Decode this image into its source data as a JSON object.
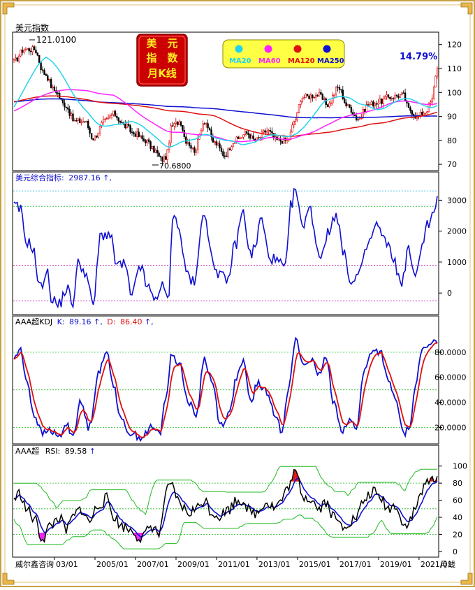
{
  "title": "美元指数",
  "high_label": "121.0100",
  "low_label": "70.6800",
  "badge": {
    "line1": "美　元",
    "line2": "指　数",
    "line3": "月K线"
  },
  "pct_label": "14.79%",
  "ma_legend": [
    {
      "name": "MA20",
      "color": "#22d3ee"
    },
    {
      "name": "MA60",
      "color": "#ff22ff"
    },
    {
      "name": "MA120",
      "color": "#e01010"
    },
    {
      "name": "MA250",
      "color": "#1010d0"
    }
  ],
  "panel2": {
    "label": "美元综合指标:",
    "value": "2987.16",
    "suffix": "↑,"
  },
  "panel3": {
    "label": "AAA超KDJ",
    "k_label": "K:",
    "k_value": "89.16",
    "k_arrow": "↑,",
    "d_label": "D:",
    "d_value": "86.40",
    "d_arrow": "↑,"
  },
  "panel4": {
    "label": "AAA超",
    "rsi_label": "RSI:",
    "rsi_value": "89.58",
    "rsi_arrow": "↑"
  },
  "footer": {
    "brand": "威尔鑫咨询",
    "period": "月线"
  },
  "colors": {
    "up": "#e00000",
    "down": "#000000",
    "blue": "#1010d0",
    "red": "#e01010",
    "cyan": "#22d3ee",
    "magenta": "#ff22ff",
    "green": "#22bb22",
    "frame": "#c8a040"
  },
  "chart_data": [
    {
      "type": "candlestick",
      "title": "美元指数",
      "ylim": [
        68,
        124
      ],
      "yticks": [
        70,
        80,
        90,
        100,
        110,
        120
      ],
      "x_ticks": [
        "03/01",
        "2005/01",
        "2007/01",
        "2009/01",
        "2011/01",
        "2013/01",
        "2015/01",
        "2017/01",
        "2019/01",
        "2021/01"
      ],
      "x_start": 2001.0,
      "x_end": 2021.9,
      "close_anchors": [
        [
          2001.0,
          113
        ],
        [
          2001.5,
          118
        ],
        [
          2002.0,
          118
        ],
        [
          2002.5,
          108
        ],
        [
          2003.0,
          101
        ],
        [
          2003.5,
          95
        ],
        [
          2004.0,
          88
        ],
        [
          2004.5,
          88
        ],
        [
          2004.9,
          81
        ],
        [
          2005.5,
          88
        ],
        [
          2005.9,
          91
        ],
        [
          2006.5,
          86
        ],
        [
          2006.9,
          83
        ],
        [
          2007.5,
          80
        ],
        [
          2007.9,
          76
        ],
        [
          2008.3,
          72
        ],
        [
          2008.5,
          73
        ],
        [
          2008.8,
          86
        ],
        [
          2009.2,
          88
        ],
        [
          2009.5,
          80
        ],
        [
          2009.9,
          76
        ],
        [
          2010.4,
          88
        ],
        [
          2010.9,
          79
        ],
        [
          2011.4,
          74
        ],
        [
          2011.9,
          80
        ],
        [
          2012.5,
          83
        ],
        [
          2012.9,
          80
        ],
        [
          2013.5,
          84
        ],
        [
          2014.0,
          80
        ],
        [
          2014.5,
          80
        ],
        [
          2014.9,
          89
        ],
        [
          2015.2,
          98
        ],
        [
          2016.0,
          99
        ],
        [
          2016.5,
          95
        ],
        [
          2017.0,
          102
        ],
        [
          2017.5,
          94
        ],
        [
          2018.0,
          89
        ],
        [
          2018.5,
          95
        ],
        [
          2019.0,
          96
        ],
        [
          2019.5,
          98
        ],
        [
          2020.2,
          99
        ],
        [
          2020.5,
          93
        ],
        [
          2020.9,
          90
        ],
        [
          2021.3,
          92
        ],
        [
          2021.6,
          96
        ],
        [
          2021.9,
          110
        ]
      ],
      "series": [
        {
          "name": "MA20",
          "color": "#22d3ee"
        },
        {
          "name": "MA60",
          "color": "#ff22ff"
        },
        {
          "name": "MA120",
          "color": "#e01010"
        },
        {
          "name": "MA250",
          "color": "#1010d0"
        }
      ]
    },
    {
      "type": "line",
      "title": "美元综合指标",
      "ylim": [
        -650,
        3550
      ],
      "yticks": [
        0,
        1000,
        2000,
        3000
      ],
      "ref_lines": [
        {
          "y": 3300,
          "color": "#22aaee"
        },
        {
          "y": 2800,
          "color": "#22bb22"
        },
        {
          "y": 900,
          "color": "#bb22bb"
        },
        {
          "y": -250,
          "color": "#bb22bb"
        }
      ],
      "anchors": [
        [
          2001.0,
          2800
        ],
        [
          2001.3,
          2700
        ],
        [
          2001.6,
          1700
        ],
        [
          2001.9,
          1500
        ],
        [
          2002.3,
          150
        ],
        [
          2002.6,
          700
        ],
        [
          2002.9,
          -200
        ],
        [
          2003.2,
          -400
        ],
        [
          2003.6,
          150
        ],
        [
          2003.9,
          -300
        ],
        [
          2004.2,
          1000
        ],
        [
          2004.5,
          700
        ],
        [
          2004.9,
          -350
        ],
        [
          2005.3,
          1900
        ],
        [
          2005.7,
          1900
        ],
        [
          2006.1,
          900
        ],
        [
          2006.5,
          900
        ],
        [
          2006.8,
          -200
        ],
        [
          2007.2,
          900
        ],
        [
          2007.6,
          200
        ],
        [
          2007.9,
          -200
        ],
        [
          2008.3,
          200
        ],
        [
          2008.6,
          -200
        ],
        [
          2008.9,
          2700
        ],
        [
          2009.2,
          1900
        ],
        [
          2009.5,
          700
        ],
        [
          2009.9,
          300
        ],
        [
          2010.4,
          2700
        ],
        [
          2010.8,
          1000
        ],
        [
          2011.2,
          600
        ],
        [
          2011.5,
          300
        ],
        [
          2011.9,
          1500
        ],
        [
          2012.3,
          2600
        ],
        [
          2012.7,
          1200
        ],
        [
          2012.9,
          1500
        ],
        [
          2013.2,
          2400
        ],
        [
          2013.6,
          1200
        ],
        [
          2014.0,
          1000
        ],
        [
          2014.4,
          800
        ],
        [
          2014.7,
          2900
        ],
        [
          2014.9,
          3350
        ],
        [
          2015.2,
          2200
        ],
        [
          2015.6,
          2700
        ],
        [
          2016.1,
          1200
        ],
        [
          2016.5,
          1900
        ],
        [
          2016.9,
          2600
        ],
        [
          2017.3,
          1200
        ],
        [
          2017.7,
          300
        ],
        [
          2018.1,
          700
        ],
        [
          2018.5,
          1600
        ],
        [
          2018.9,
          2200
        ],
        [
          2019.3,
          1700
        ],
        [
          2019.7,
          1200
        ],
        [
          2020.1,
          300
        ],
        [
          2020.5,
          1400
        ],
        [
          2020.8,
          400
        ],
        [
          2021.1,
          1500
        ],
        [
          2021.4,
          2200
        ],
        [
          2021.7,
          2500
        ],
        [
          2021.9,
          2987
        ]
      ],
      "series": [
        {
          "name": "美元综合指标",
          "color": "#1010d0"
        }
      ]
    },
    {
      "type": "line",
      "title": "AAA超KDJ",
      "ylim": [
        8,
        100
      ],
      "yticks": [
        20,
        40,
        60,
        80
      ],
      "ref_lines": [
        {
          "y": 80,
          "color": "#22bb22"
        },
        {
          "y": 50,
          "color": "#22bb22"
        },
        {
          "y": 20,
          "color": "#22bb22"
        }
      ],
      "anchors_k": [
        [
          2001.0,
          75
        ],
        [
          2001.3,
          82
        ],
        [
          2001.6,
          60
        ],
        [
          2002.0,
          30
        ],
        [
          2002.4,
          15
        ],
        [
          2002.8,
          18
        ],
        [
          2003.2,
          12
        ],
        [
          2003.6,
          22
        ],
        [
          2003.9,
          14
        ],
        [
          2004.3,
          40
        ],
        [
          2004.7,
          20
        ],
        [
          2005.2,
          65
        ],
        [
          2005.6,
          80
        ],
        [
          2005.9,
          55
        ],
        [
          2006.3,
          25
        ],
        [
          2006.8,
          15
        ],
        [
          2007.3,
          12
        ],
        [
          2007.8,
          20
        ],
        [
          2008.2,
          15
        ],
        [
          2008.5,
          45
        ],
        [
          2008.8,
          78
        ],
        [
          2009.2,
          70
        ],
        [
          2009.6,
          40
        ],
        [
          2010.0,
          30
        ],
        [
          2010.4,
          75
        ],
        [
          2010.8,
          55
        ],
        [
          2011.2,
          22
        ],
        [
          2011.6,
          30
        ],
        [
          2012.0,
          60
        ],
        [
          2012.3,
          72
        ],
        [
          2012.7,
          40
        ],
        [
          2013.0,
          55
        ],
        [
          2013.4,
          50
        ],
        [
          2013.9,
          30
        ],
        [
          2014.2,
          18
        ],
        [
          2014.6,
          55
        ],
        [
          2014.9,
          90
        ],
        [
          2015.3,
          70
        ],
        [
          2015.7,
          75
        ],
        [
          2016.0,
          60
        ],
        [
          2016.4,
          75
        ],
        [
          2016.8,
          40
        ],
        [
          2017.2,
          18
        ],
        [
          2017.6,
          25
        ],
        [
          2017.9,
          20
        ],
        [
          2018.3,
          65
        ],
        [
          2018.7,
          82
        ],
        [
          2019.1,
          80
        ],
        [
          2019.5,
          55
        ],
        [
          2019.9,
          40
        ],
        [
          2020.2,
          15
        ],
        [
          2020.5,
          18
        ],
        [
          2020.8,
          50
        ],
        [
          2021.1,
          80
        ],
        [
          2021.5,
          85
        ],
        [
          2021.9,
          89
        ]
      ],
      "series": [
        {
          "name": "K",
          "color": "#1010d0"
        },
        {
          "name": "D",
          "color": "#e01010"
        }
      ]
    },
    {
      "type": "line",
      "title": "AAA超 RSI",
      "ylim": [
        -5,
        112
      ],
      "yticks": [
        0,
        20,
        40,
        60,
        80,
        100
      ],
      "ref_lines": [
        {
          "y": 80,
          "color": "#22bb22"
        },
        {
          "y": 50,
          "color": "#22bb22"
        },
        {
          "y": 20,
          "color": "#22bb22"
        }
      ],
      "anchors": [
        [
          2001.0,
          62
        ],
        [
          2001.3,
          68
        ],
        [
          2001.6,
          50
        ],
        [
          2002.0,
          38
        ],
        [
          2002.4,
          15
        ],
        [
          2002.8,
          30
        ],
        [
          2003.2,
          40
        ],
        [
          2003.6,
          25
        ],
        [
          2003.9,
          40
        ],
        [
          2004.3,
          50
        ],
        [
          2004.7,
          35
        ],
        [
          2005.2,
          55
        ],
        [
          2005.6,
          62
        ],
        [
          2005.9,
          42
        ],
        [
          2006.3,
          30
        ],
        [
          2006.8,
          25
        ],
        [
          2007.3,
          15
        ],
        [
          2007.8,
          30
        ],
        [
          2008.2,
          20
        ],
        [
          2008.5,
          70
        ],
        [
          2008.8,
          75
        ],
        [
          2009.2,
          55
        ],
        [
          2009.6,
          45
        ],
        [
          2010.0,
          50
        ],
        [
          2010.4,
          60
        ],
        [
          2010.8,
          45
        ],
        [
          2011.2,
          42
        ],
        [
          2011.6,
          50
        ],
        [
          2012.0,
          60
        ],
        [
          2012.3,
          60
        ],
        [
          2012.7,
          45
        ],
        [
          2013.0,
          45
        ],
        [
          2013.4,
          58
        ],
        [
          2013.9,
          52
        ],
        [
          2014.2,
          60
        ],
        [
          2014.6,
          78
        ],
        [
          2014.9,
          92
        ],
        [
          2015.3,
          65
        ],
        [
          2015.7,
          62
        ],
        [
          2016.0,
          50
        ],
        [
          2016.4,
          58
        ],
        [
          2016.8,
          40
        ],
        [
          2017.2,
          30
        ],
        [
          2017.6,
          35
        ],
        [
          2017.9,
          40
        ],
        [
          2018.3,
          60
        ],
        [
          2018.7,
          70
        ],
        [
          2019.1,
          62
        ],
        [
          2019.5,
          50
        ],
        [
          2019.9,
          55
        ],
        [
          2020.2,
          30
        ],
        [
          2020.5,
          35
        ],
        [
          2020.8,
          48
        ],
        [
          2021.1,
          70
        ],
        [
          2021.5,
          82
        ],
        [
          2021.9,
          89.58
        ]
      ],
      "series": [
        {
          "name": "RSI",
          "color": "#000000"
        },
        {
          "name": "signal",
          "color": "#1010d0"
        }
      ]
    }
  ]
}
